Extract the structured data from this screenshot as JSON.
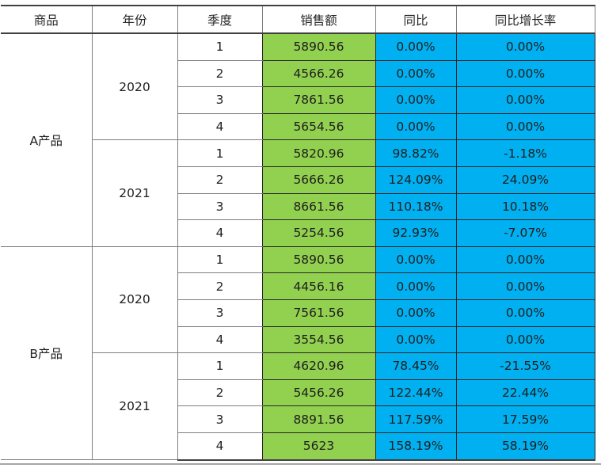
{
  "colors": {
    "sales_bg": "#92d050",
    "yoy_bg": "#00b0f0",
    "border_dark": "#262626",
    "border_gray": "#7f7f7f",
    "rule_gray": "#a6a6a6"
  },
  "chart_data": {
    "type": "table",
    "columns": [
      {
        "key": "product",
        "label": "商品"
      },
      {
        "key": "year",
        "label": "年份"
      },
      {
        "key": "quarter",
        "label": "季度"
      },
      {
        "key": "sales",
        "label": "销售额"
      },
      {
        "key": "yoy",
        "label": "同比"
      },
      {
        "key": "yoy_growth",
        "label": "同比增长率"
      }
    ],
    "rows": [
      {
        "product": "A产品",
        "year": "2020",
        "quarter": "1",
        "sales": "5890.56",
        "yoy": "0.00%",
        "yoy_growth": "0.00%"
      },
      {
        "product": "A产品",
        "year": "2020",
        "quarter": "2",
        "sales": "4566.26",
        "yoy": "0.00%",
        "yoy_growth": "0.00%"
      },
      {
        "product": "A产品",
        "year": "2020",
        "quarter": "3",
        "sales": "7861.56",
        "yoy": "0.00%",
        "yoy_growth": "0.00%"
      },
      {
        "product": "A产品",
        "year": "2020",
        "quarter": "4",
        "sales": "5654.56",
        "yoy": "0.00%",
        "yoy_growth": "0.00%"
      },
      {
        "product": "A产品",
        "year": "2021",
        "quarter": "1",
        "sales": "5820.96",
        "yoy": "98.82%",
        "yoy_growth": "-1.18%"
      },
      {
        "product": "A产品",
        "year": "2021",
        "quarter": "2",
        "sales": "5666.26",
        "yoy": "124.09%",
        "yoy_growth": "24.09%"
      },
      {
        "product": "A产品",
        "year": "2021",
        "quarter": "3",
        "sales": "8661.56",
        "yoy": "110.18%",
        "yoy_growth": "10.18%"
      },
      {
        "product": "A产品",
        "year": "2021",
        "quarter": "4",
        "sales": "5254.56",
        "yoy": "92.93%",
        "yoy_growth": "-7.07%"
      },
      {
        "product": "B产品",
        "year": "2020",
        "quarter": "1",
        "sales": "5890.56",
        "yoy": "0.00%",
        "yoy_growth": "0.00%"
      },
      {
        "product": "B产品",
        "year": "2020",
        "quarter": "2",
        "sales": "4456.16",
        "yoy": "0.00%",
        "yoy_growth": "0.00%"
      },
      {
        "product": "B产品",
        "year": "2020",
        "quarter": "3",
        "sales": "7561.56",
        "yoy": "0.00%",
        "yoy_growth": "0.00%"
      },
      {
        "product": "B产品",
        "year": "2020",
        "quarter": "4",
        "sales": "3554.56",
        "yoy": "0.00%",
        "yoy_growth": "0.00%"
      },
      {
        "product": "B产品",
        "year": "2021",
        "quarter": "1",
        "sales": "4620.96",
        "yoy": "78.45%",
        "yoy_growth": "-21.55%"
      },
      {
        "product": "B产品",
        "year": "2021",
        "quarter": "2",
        "sales": "5456.26",
        "yoy": "122.44%",
        "yoy_growth": "22.44%"
      },
      {
        "product": "B产品",
        "year": "2021",
        "quarter": "3",
        "sales": "8891.56",
        "yoy": "117.59%",
        "yoy_growth": "17.59%"
      },
      {
        "product": "B产品",
        "year": "2021",
        "quarter": "4",
        "sales": "5623",
        "yoy": "158.19%",
        "yoy_growth": "58.19%"
      }
    ]
  }
}
